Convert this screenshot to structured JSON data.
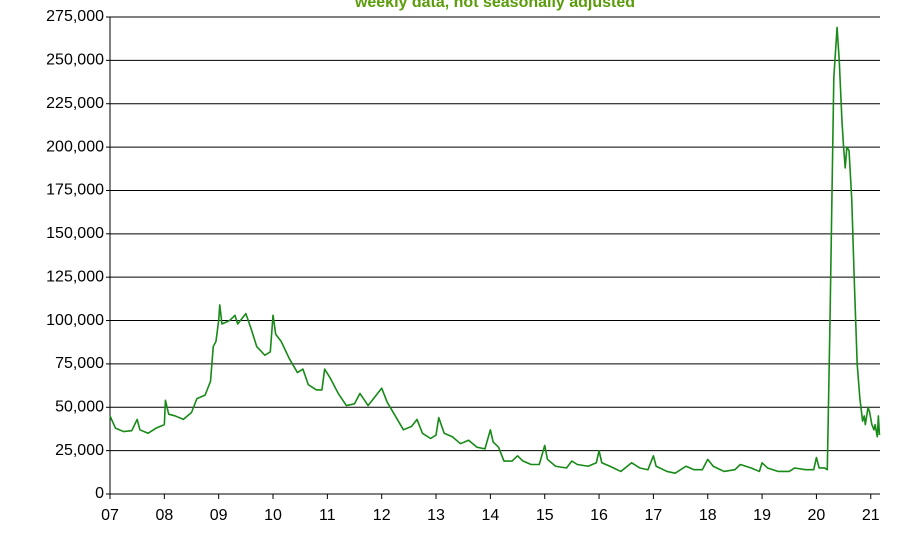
{
  "chart_data": {
    "type": "line",
    "subtitle": "weekly data, not seasonally adjusted",
    "x": [
      2007.0,
      2007.1,
      2007.25,
      2007.4,
      2007.5,
      2007.55,
      2007.7,
      2007.85,
      2008.0,
      2008.02,
      2008.08,
      2008.2,
      2008.35,
      2008.5,
      2008.6,
      2008.75,
      2008.85,
      2008.9,
      2008.95,
      2009.0,
      2009.02,
      2009.06,
      2009.2,
      2009.3,
      2009.35,
      2009.5,
      2009.6,
      2009.7,
      2009.85,
      2009.95,
      2010.0,
      2010.05,
      2010.15,
      2010.3,
      2010.45,
      2010.55,
      2010.65,
      2010.8,
      2010.9,
      2010.95,
      2011.05,
      2011.2,
      2011.35,
      2011.5,
      2011.6,
      2011.75,
      2011.85,
      2012.0,
      2012.1,
      2012.25,
      2012.4,
      2012.55,
      2012.65,
      2012.75,
      2012.9,
      2013.0,
      2013.05,
      2013.15,
      2013.3,
      2013.45,
      2013.6,
      2013.75,
      2013.9,
      2014.0,
      2014.05,
      2014.15,
      2014.25,
      2014.4,
      2014.5,
      2014.6,
      2014.75,
      2014.9,
      2015.0,
      2015.05,
      2015.2,
      2015.4,
      2015.5,
      2015.6,
      2015.8,
      2015.95,
      2016.0,
      2016.05,
      2016.2,
      2016.4,
      2016.6,
      2016.75,
      2016.9,
      2017.0,
      2017.05,
      2017.25,
      2017.4,
      2017.6,
      2017.75,
      2017.9,
      2018.0,
      2018.1,
      2018.3,
      2018.5,
      2018.6,
      2018.8,
      2018.95,
      2019.0,
      2019.1,
      2019.3,
      2019.5,
      2019.6,
      2019.8,
      2019.95,
      2020.0,
      2020.05,
      2020.15,
      2020.2,
      2020.25,
      2020.32,
      2020.38,
      2020.42,
      2020.47,
      2020.5,
      2020.53,
      2020.56,
      2020.6,
      2020.65,
      2020.7,
      2020.75,
      2020.8,
      2020.85,
      2020.88,
      2020.9,
      2020.95,
      2020.98,
      2021.02,
      2021.06,
      2021.08,
      2021.12,
      2021.14,
      2021.16
    ],
    "series": [
      {
        "color": "#178a17",
        "values": [
          45000,
          38000,
          36000,
          36500,
          43000,
          37000,
          35000,
          38000,
          40000,
          54000,
          46000,
          45000,
          43000,
          47000,
          55000,
          57000,
          65000,
          85000,
          88000,
          100000,
          109000,
          98000,
          100000,
          103000,
          98000,
          104000,
          95000,
          85000,
          80000,
          82000,
          103000,
          92000,
          88000,
          78000,
          70000,
          72000,
          63000,
          60000,
          60000,
          72000,
          67000,
          58000,
          51000,
          52000,
          58000,
          51000,
          55000,
          61000,
          53000,
          45000,
          37000,
          39000,
          43000,
          35000,
          32000,
          34000,
          44000,
          35000,
          33000,
          29000,
          31000,
          27000,
          26000,
          37000,
          30000,
          27000,
          19000,
          19000,
          22000,
          19000,
          17000,
          17000,
          28000,
          20000,
          16000,
          15000,
          19000,
          17000,
          16000,
          18000,
          25000,
          18000,
          16000,
          13000,
          18000,
          15000,
          14000,
          22000,
          16000,
          13000,
          12000,
          16000,
          14000,
          14000,
          20000,
          16000,
          13000,
          14000,
          17000,
          15000,
          13000,
          18000,
          15000,
          13000,
          13000,
          15000,
          14000,
          14000,
          21000,
          15000,
          15000,
          14000,
          100000,
          240000,
          269000,
          250000,
          215000,
          200000,
          188000,
          200000,
          198000,
          170000,
          120000,
          75000,
          55000,
          42000,
          45000,
          40000,
          50000,
          47000,
          40000,
          37000,
          40000,
          33000,
          45000,
          34000
        ]
      }
    ],
    "xlim": [
      2007,
      2021.17
    ],
    "xticks": [
      {
        "value": 2007,
        "label": "07"
      },
      {
        "value": 2008,
        "label": "08"
      },
      {
        "value": 2009,
        "label": "09"
      },
      {
        "value": 2010,
        "label": "10"
      },
      {
        "value": 2011,
        "label": "11"
      },
      {
        "value": 2012,
        "label": "12"
      },
      {
        "value": 2013,
        "label": "13"
      },
      {
        "value": 2014,
        "label": "14"
      },
      {
        "value": 2015,
        "label": "15"
      },
      {
        "value": 2016,
        "label": "16"
      },
      {
        "value": 2017,
        "label": "17"
      },
      {
        "value": 2018,
        "label": "18"
      },
      {
        "value": 2019,
        "label": "19"
      },
      {
        "value": 2020,
        "label": "20"
      },
      {
        "value": 2021,
        "label": "21"
      }
    ],
    "ylim": [
      0,
      275000
    ],
    "yticks": [
      0,
      {
        "value": 25000,
        "label": "25,000"
      },
      {
        "value": 50000,
        "label": "50,000"
      },
      {
        "value": 75000,
        "label": "75,000"
      },
      {
        "value": 100000,
        "label": "100,000"
      },
      {
        "value": 125000,
        "label": "125,000"
      },
      {
        "value": 150000,
        "label": "150,000"
      },
      {
        "value": 175000,
        "label": "175,000"
      },
      {
        "value": 200000,
        "label": "200,000"
      },
      {
        "value": 225000,
        "label": "225,000"
      },
      {
        "value": 250000,
        "label": "250,000"
      },
      {
        "value": 275000,
        "label": "275,000"
      }
    ],
    "grid": true
  }
}
